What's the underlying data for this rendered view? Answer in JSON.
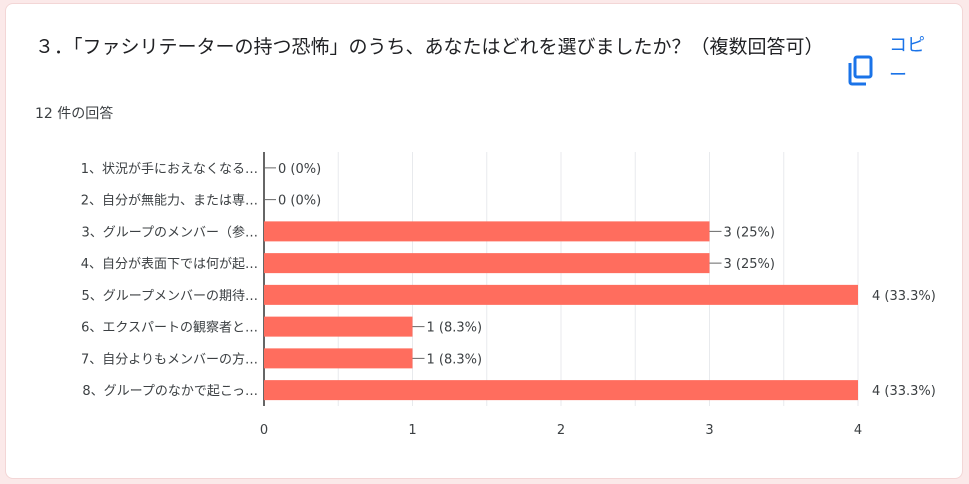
{
  "question": {
    "title": "３．「ファシリテーターの持つ恐怖」のうち、あなたはどれを選びましたか？（複数回答可）",
    "response_count": "12 件の回答"
  },
  "copy_button": {
    "label": "コピー",
    "icon": "copy-icon"
  },
  "colors": {
    "bar": "#ff6d5e",
    "text": "#3c4043",
    "grid": "#e8eaed",
    "axis": "#333333"
  },
  "chart_data": {
    "type": "bar",
    "orientation": "horizontal",
    "categories": [
      "1、状況が手におえなくなる…",
      "2、自分が無能力、または専…",
      "3、グループのメンバー（参…",
      "4、自分が表面下では何が起…",
      "5、グループメンバーの期待…",
      "6、エクスパートの観察者と…",
      "7、自分よりもメンバーの方…",
      "8、グループのなかで起こっ…"
    ],
    "values": [
      0,
      0,
      3,
      3,
      4,
      1,
      1,
      4
    ],
    "data_labels": [
      "0 (0%)",
      "0 (0%)",
      "3 (25%)",
      "3 (25%)",
      "4 (33.3%)",
      "1 (8.3%)",
      "1 (8.3%)",
      "4 (33.3%)"
    ],
    "xlim": [
      0,
      4
    ],
    "xticks": [
      "0",
      "1",
      "2",
      "3",
      "4"
    ],
    "grid": true,
    "legend": "none"
  }
}
